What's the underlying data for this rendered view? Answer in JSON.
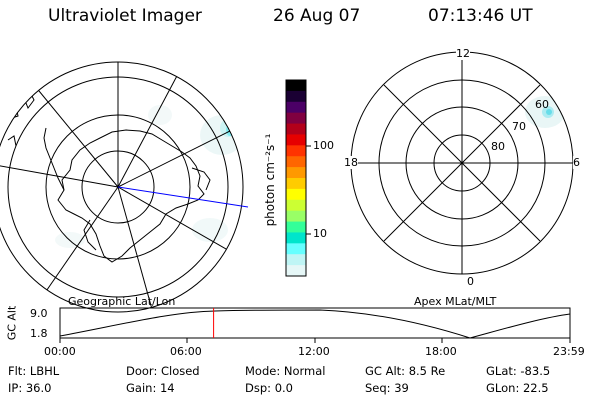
{
  "header": {
    "instrument": "Ultraviolet Imager",
    "date": "26 Aug 07",
    "time": "07:13:46 UT"
  },
  "geo_map": {
    "caption": "Geographic Lat/Lon"
  },
  "colorbar": {
    "unit_label": "photon cm⁻²s⁻¹",
    "tick_labels": [
      "100",
      "10"
    ],
    "colors": [
      "#000000",
      "#1a0033",
      "#4b0066",
      "#800040",
      "#b3001a",
      "#e60000",
      "#ff3300",
      "#ff6600",
      "#ff9900",
      "#ffcc00",
      "#ffff00",
      "#ccff33",
      "#99ff66",
      "#33ff99",
      "#00e5cc",
      "#66ffff",
      "#bff5f5",
      "#e6f7f7"
    ]
  },
  "apex_map": {
    "caption": "Apex MLat/MLT",
    "mlt_labels": {
      "top": "12",
      "left": "18",
      "right": "6",
      "bottom": "0"
    },
    "lat_labels": [
      "60",
      "70",
      "80"
    ]
  },
  "altitude_plot": {
    "y_label": "GC Alt",
    "y_ticks": [
      "9.0",
      "1.8"
    ],
    "x_ticks": [
      "00:00",
      "06:00",
      "12:00",
      "18:00",
      "23:59"
    ],
    "current_time_hours": 7.23,
    "color_marker": "#ff0000"
  },
  "info_rows": [
    [
      {
        "label": "Flt:",
        "value": "LBHL"
      },
      {
        "label": "Door:",
        "value": "Closed"
      },
      {
        "label": "Mode:",
        "value": "Normal"
      },
      {
        "label": "GC Alt:",
        "value": "8.5 Re"
      },
      {
        "label": "GLat:",
        "value": "-83.5"
      }
    ],
    [
      {
        "label": "IP:",
        "value": "36.0"
      },
      {
        "label": "Gain:",
        "value": "14"
      },
      {
        "label": "Dsp:",
        "value": "0.0"
      },
      {
        "label": "Seq:",
        "value": "39"
      },
      {
        "label": "GLon:",
        "value": "22.5"
      }
    ]
  ]
}
